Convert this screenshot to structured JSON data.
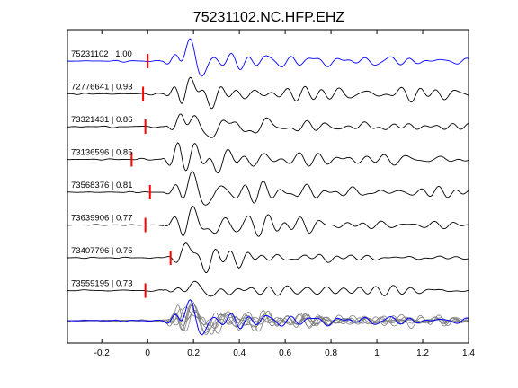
{
  "chart_data": {
    "type": "line",
    "title": "75231102.NC.HFP.EHZ",
    "xlabel": "",
    "ylabel": "",
    "xlim": [
      -0.35,
      1.4
    ],
    "x_ticks": [
      -0.2,
      0,
      0.2,
      0.4,
      0.6,
      0.8,
      1,
      1.2,
      1.4
    ],
    "x_tick_labels": [
      "-0.2",
      "0",
      "0.2",
      "0.4",
      "0.6",
      "0.8",
      "1",
      "1.2",
      "1.4"
    ],
    "grid": false,
    "legend": "none",
    "colors": {
      "reference": "#0000ff",
      "trace": "#000000",
      "stack": "#808080",
      "pick": "#ff0000"
    },
    "series": [
      {
        "name": "75231102 | 1.00",
        "pick_time": 0.0,
        "color": "#0000ff"
      },
      {
        "name": "72776641 | 0.93",
        "pick_time": -0.02,
        "color": "#000000"
      },
      {
        "name": "73321431 | 0.86",
        "pick_time": -0.01,
        "color": "#000000"
      },
      {
        "name": "73136596 | 0.85",
        "pick_time": -0.07,
        "color": "#000000"
      },
      {
        "name": "73568376 | 0.81",
        "pick_time": 0.01,
        "color": "#000000"
      },
      {
        "name": "73639906 | 0.77",
        "pick_time": -0.01,
        "color": "#000000"
      },
      {
        "name": "73407796 | 0.75",
        "pick_time": 0.1,
        "color": "#000000"
      },
      {
        "name": "73559195 | 0.73",
        "pick_time": -0.01,
        "color": "#000000"
      }
    ],
    "stack": {
      "reference_color": "#0000ff",
      "others_color": "#808080"
    }
  }
}
